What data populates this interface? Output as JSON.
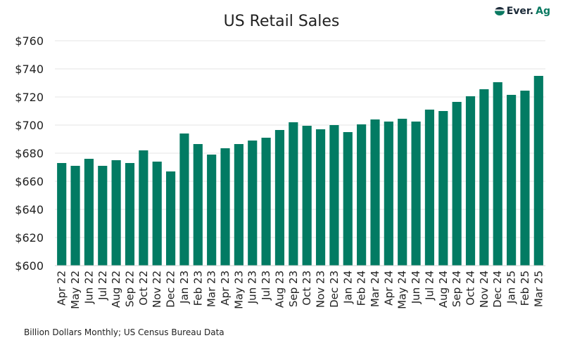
{
  "chart_data": {
    "type": "bar",
    "title": "US Retail Sales",
    "footnote": "Billion Dollars Monthly; US Census Bureau Data",
    "logo": "Ever.Ag",
    "color": "#027b63",
    "ylim": [
      600,
      760
    ],
    "yticks": [
      600,
      620,
      640,
      660,
      680,
      700,
      720,
      740,
      760
    ],
    "ytick_labels": [
      "$600",
      "$620",
      "$640",
      "$660",
      "$680",
      "$700",
      "$720",
      "$740",
      "$760"
    ],
    "grid": true,
    "categories": [
      "Apr 22",
      "May 22",
      "Jun 22",
      "Jul 22",
      "Aug 22",
      "Sep 22",
      "Oct 22",
      "Nov 22",
      "Dec 22",
      "Jan 23",
      "Feb 23",
      "Mar 23",
      "Apr 23",
      "May 23",
      "Jun 23",
      "Jul 23",
      "Aug 23",
      "Sep 23",
      "Oct 23",
      "Nov 23",
      "Dec 23",
      "Jan 24",
      "Feb 24",
      "Mar 24",
      "Apr 24",
      "May 24",
      "Jun 24",
      "Jul 24",
      "Aug 24",
      "Sep 24",
      "Oct 24",
      "Nov 24",
      "Dec 24",
      "Jan 25",
      "Feb 25",
      "Mar 25"
    ],
    "values": [
      673,
      671,
      676,
      671,
      675,
      673,
      682,
      674,
      667,
      694,
      686.5,
      679,
      683.5,
      686.5,
      689,
      691,
      696.5,
      702,
      699.5,
      697,
      700,
      695,
      700.5,
      704,
      702.5,
      704.5,
      702.5,
      711,
      710,
      716.5,
      720.5,
      725.5,
      730.5,
      721.5,
      724.5,
      735
    ]
  }
}
